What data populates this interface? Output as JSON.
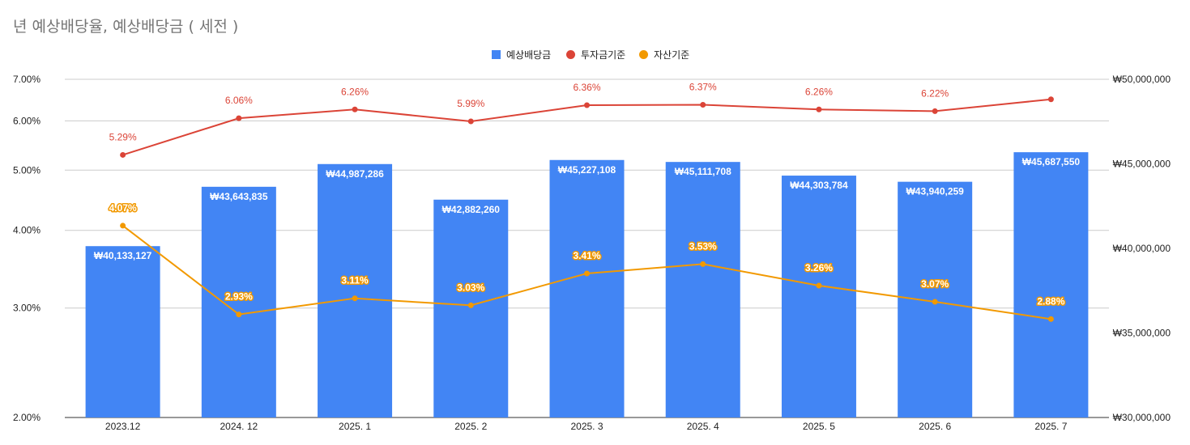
{
  "chart_data": {
    "type": "bar",
    "title": "년 예상배당율, 예상배당금 ( 세전 )",
    "categories": [
      "2023.12",
      "2024. 12",
      "2025. 1",
      "2025. 2",
      "2025. 3",
      "2025. 4",
      "2025. 5",
      "2025. 6",
      "2025. 7"
    ],
    "series": [
      {
        "name": "예상배당금",
        "type": "bar",
        "axis": "right",
        "color": "#4285f4",
        "values": [
          40133127,
          43643835,
          44987286,
          42882260,
          45227108,
          45111708,
          44303784,
          43940259,
          45687550
        ],
        "labels": [
          "₩40,133,127",
          "₩43,643,835",
          "₩44,987,286",
          "₩42,882,260",
          "₩45,227,108",
          "₩45,111,708",
          "₩44,303,784",
          "₩43,940,259",
          "₩45,687,550"
        ]
      },
      {
        "name": "투자금기준",
        "type": "line",
        "axis": "left",
        "color": "#db4437",
        "values": [
          5.29,
          6.06,
          6.26,
          5.99,
          6.36,
          6.37,
          6.26,
          6.22,
          6.5
        ],
        "labels": [
          "5.29%",
          "6.06%",
          "6.26%",
          "5.99%",
          "6.36%",
          "6.37%",
          "6.26%",
          "6.22%",
          ""
        ]
      },
      {
        "name": "자산기준",
        "type": "line",
        "axis": "left",
        "color": "#f29900",
        "values": [
          4.07,
          2.93,
          3.11,
          3.03,
          3.41,
          3.53,
          3.26,
          3.07,
          2.88
        ],
        "labels": [
          "4.07%",
          "2.93%",
          "3.11%",
          "3.03%",
          "3.41%",
          "3.53%",
          "3.26%",
          "3.07%",
          "2.88%"
        ]
      }
    ],
    "left_axis": {
      "scale": "log",
      "ticks": [
        2,
        3,
        4,
        5,
        6,
        7
      ],
      "tick_labels": [
        "2.00%",
        "3.00%",
        "4.00%",
        "5.00%",
        "6.00%",
        "7.00%"
      ],
      "range": [
        2,
        7
      ]
    },
    "right_axis": {
      "scale": "linear",
      "ticks": [
        30000000,
        35000000,
        40000000,
        45000000,
        50000000
      ],
      "tick_labels": [
        "₩30,000,000",
        "₩35,000,000",
        "₩40,000,000",
        "₩45,000,000",
        "₩50,000,000"
      ],
      "range": [
        30000000,
        50000000
      ]
    },
    "legend_position": "top-center",
    "grid": true
  }
}
